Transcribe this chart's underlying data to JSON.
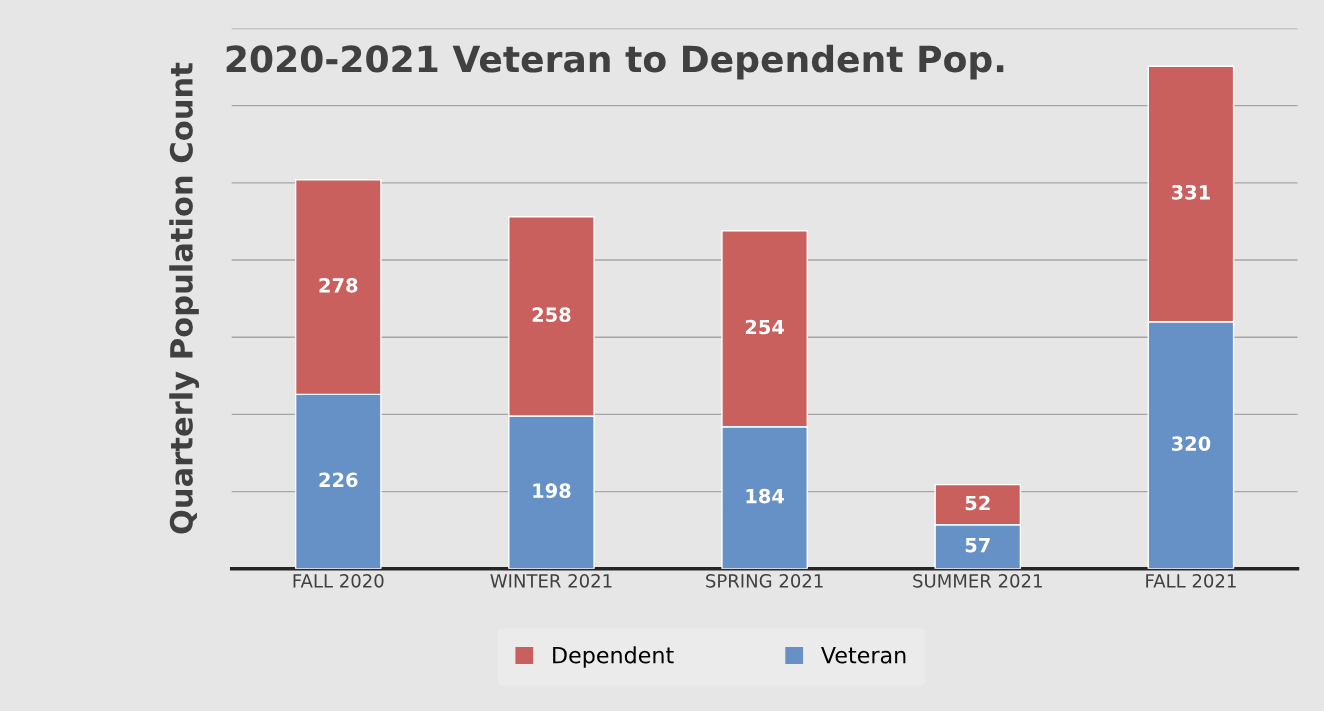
{
  "chart_data": {
    "type": "bar",
    "title": "2020-2021 Veteran to Dependent Pop.",
    "ylabel": "Quarterly Population Count",
    "categories": [
      "FALL 2020",
      "WINTER 2021",
      "SPRING 2021",
      "SUMMER 2021",
      "FALL 2021"
    ],
    "series": [
      {
        "name": "Veteran",
        "color": "#6591c7",
        "values": [
          226,
          198,
          184,
          57,
          320
        ]
      },
      {
        "name": "Dependent",
        "color": "#c9605d",
        "values": [
          278,
          258,
          254,
          52,
          331
        ]
      }
    ],
    "stacked": true,
    "data_labels": true,
    "ylim": [
      0,
      700
    ],
    "yticks": [
      {
        "value": 0,
        "label": null
      },
      {
        "value": 100,
        "label": null
      },
      {
        "value": 200,
        "label": null
      },
      {
        "value": 300,
        "label": null
      },
      {
        "value": 400,
        "label": null
      },
      {
        "value": 500,
        "label": null
      },
      {
        "value": 600,
        "label": null
      },
      {
        "value": 700,
        "label": null
      }
    ],
    "grid": "y",
    "legend": "bottom"
  }
}
